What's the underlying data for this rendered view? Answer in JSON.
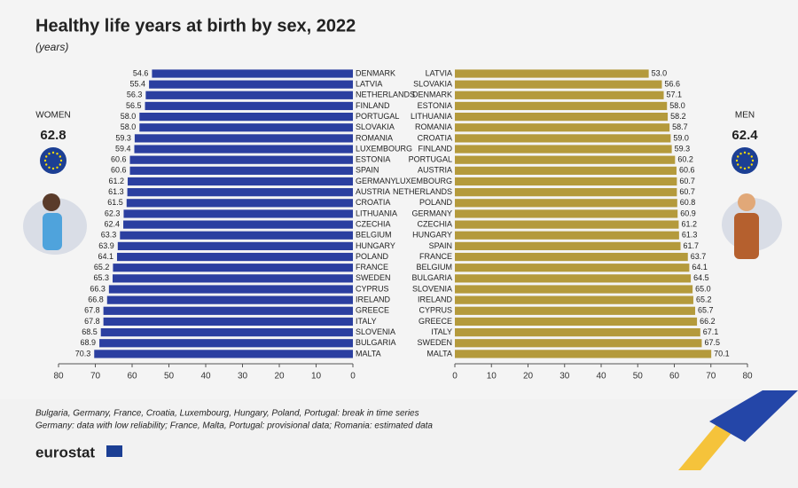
{
  "title": "Healthy life years at birth by sex, 2022",
  "subtitle": "(years)",
  "notes": [
    "Bulgaria, Germany, France, Croatia, Luxembourg, Hungary, Poland, Portugal: break in time series",
    "Germany: data with low reliability; France, Malta, Portugal: provisional data; Romania: estimated data"
  ],
  "logo": "eurostat",
  "chart_data": [
    {
      "type": "bar",
      "orientation": "horizontal",
      "label": "WOMEN",
      "total": 62.8,
      "color": "#2b3fa0",
      "categories": [
        "DENMARK",
        "LATVIA",
        "NETHERLANDS",
        "FINLAND",
        "PORTUGAL",
        "SLOVAKIA",
        "ROMANIA",
        "LUXEMBOURG",
        "ESTONIA",
        "SPAIN",
        "GERMANY",
        "AUSTRIA",
        "CROATIA",
        "LITHUANIA",
        "CZECHIA",
        "BELGIUM",
        "HUNGARY",
        "POLAND",
        "FRANCE",
        "SWEDEN",
        "CYPRUS",
        "IRELAND",
        "GREECE",
        "ITALY",
        "SLOVENIA",
        "BULGARIA",
        "MALTA"
      ],
      "values": [
        54.6,
        55.4,
        56.3,
        56.5,
        58.0,
        58.0,
        59.3,
        59.4,
        60.6,
        60.6,
        61.2,
        61.3,
        61.5,
        62.3,
        62.4,
        63.3,
        63.9,
        64.1,
        65.2,
        65.3,
        66.3,
        66.8,
        67.8,
        67.8,
        68.5,
        68.9,
        70.3
      ],
      "value_labels": [
        "54.6",
        "55.4",
        "56.3",
        "56.5",
        "58.0",
        "58.0",
        "59.3",
        "59.4",
        "60.6",
        "60.6",
        "61.2",
        "61.3",
        "61.5",
        "62.3",
        "62.4",
        "63.3",
        "63.9",
        "64.1",
        "65.2",
        "65.3",
        "66.3",
        "66.8",
        "67.8",
        "67.8",
        "68.5",
        "68.9",
        "70.3"
      ],
      "xlim": [
        80,
        0
      ],
      "xticks": [
        80,
        70,
        60,
        50,
        40,
        30,
        20,
        10,
        0
      ]
    },
    {
      "type": "bar",
      "orientation": "horizontal",
      "label": "MEN",
      "total": 62.4,
      "color": "#b49a3c",
      "categories": [
        "LATVIA",
        "SLOVAKIA",
        "DENMARK",
        "ESTONIA",
        "LITHUANIA",
        "ROMANIA",
        "CROATIA",
        "FINLAND",
        "PORTUGAL",
        "AUSTRIA",
        "LUXEMBOURG",
        "NETHERLANDS",
        "POLAND",
        "GERMANY",
        "CZECHIA",
        "HUNGARY",
        "SPAIN",
        "FRANCE",
        "BELGIUM",
        "BULGARIA",
        "SLOVENIA",
        "IRELAND",
        "CYPRUS",
        "GREECE",
        "ITALY",
        "SWEDEN",
        "MALTA"
      ],
      "values": [
        53.0,
        56.6,
        57.1,
        58.0,
        58.2,
        58.7,
        59.0,
        59.3,
        60.2,
        60.6,
        60.7,
        60.7,
        60.8,
        60.9,
        61.2,
        61.3,
        61.7,
        63.7,
        64.1,
        64.5,
        65.0,
        65.2,
        65.7,
        66.2,
        67.1,
        67.5,
        70.1
      ],
      "value_labels": [
        "53.0",
        "56.6",
        "57.1",
        "58.0",
        "58.2",
        "58.7",
        "59.0",
        "59.3",
        "60.2",
        "60.6",
        "60.7",
        "60.7",
        "60.8",
        "60.9",
        "61.2",
        "61.3",
        "61.7",
        "63.7",
        "64.1",
        "64.5",
        "65.0",
        "65.2",
        "65.7",
        "66.2",
        "67.1",
        "67.5",
        "70.1"
      ],
      "xlim": [
        0,
        80
      ],
      "xticks": [
        0,
        10,
        20,
        30,
        40,
        50,
        60,
        70,
        80
      ]
    }
  ]
}
